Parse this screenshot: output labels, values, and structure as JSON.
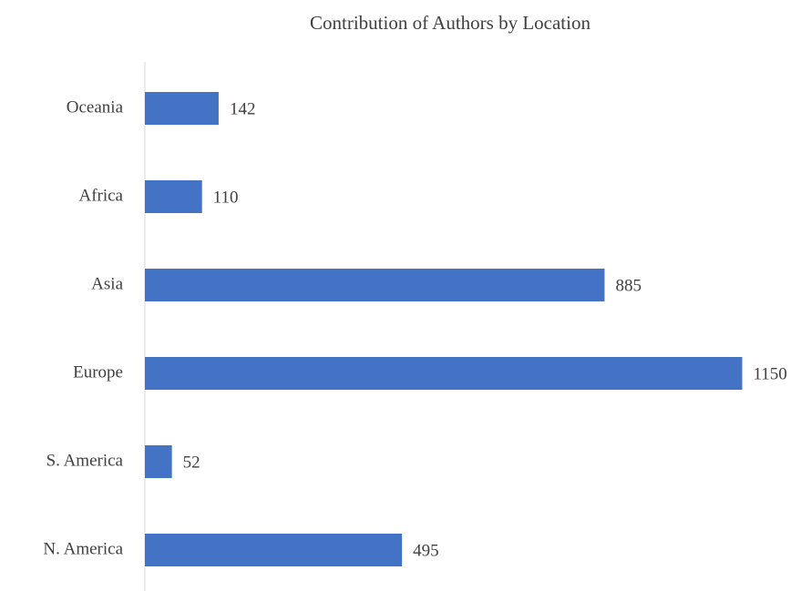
{
  "chart_data": {
    "type": "hbar",
    "title": "Contribution of Authors by Location",
    "categories": [
      "Oceania",
      "Africa",
      "Asia",
      "Europe",
      "S. America",
      "N. America"
    ],
    "values": [
      142,
      110,
      885,
      1150,
      52,
      495
    ],
    "color": "#4472c4",
    "xlim": [
      0,
      1200
    ]
  }
}
